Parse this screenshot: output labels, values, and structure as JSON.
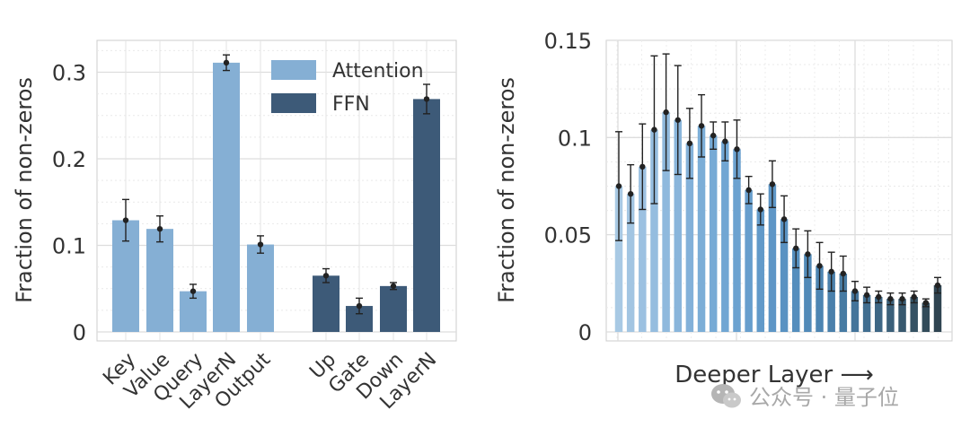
{
  "chart_data": [
    {
      "type": "bar",
      "ylabel": "Fraction of non-zeros",
      "ylim": [
        0,
        0.34
      ],
      "yticks": [
        0,
        0.1,
        0.2,
        0.3
      ],
      "ytick_labels": [
        "0",
        "0.1",
        "0.2",
        "0.3"
      ],
      "grid": true,
      "legend": "top-right",
      "series": [
        {
          "name": "Attention",
          "color": "#85afd4",
          "categories": [
            "Key",
            "Value",
            "Query",
            "LayerN",
            "Output"
          ],
          "values": [
            0.129,
            0.119,
            0.047,
            0.311,
            0.101
          ],
          "errors": [
            0.024,
            0.015,
            0.008,
            0.009,
            0.01
          ]
        },
        {
          "name": "FFN",
          "color": "#3d5a78",
          "categories": [
            "Up",
            "Gate",
            "Down",
            "LayerN"
          ],
          "values": [
            0.065,
            0.03,
            0.053,
            0.269
          ],
          "errors": [
            0.008,
            0.009,
            0.004,
            0.017
          ]
        }
      ]
    },
    {
      "type": "bar",
      "xlabel": "Deeper Layer ⟶",
      "ylabel": "Fraction of non-zeros",
      "ylim": [
        0,
        0.15
      ],
      "yticks": [
        0,
        0.05,
        0.1,
        0.15
      ],
      "ytick_labels": [
        "0",
        "0.05",
        "0.1",
        "0.15"
      ],
      "grid": true,
      "values": [
        0.075,
        0.071,
        0.085,
        0.104,
        0.113,
        0.109,
        0.097,
        0.106,
        0.101,
        0.098,
        0.094,
        0.073,
        0.063,
        0.076,
        0.058,
        0.043,
        0.04,
        0.034,
        0.031,
        0.03,
        0.021,
        0.019,
        0.018,
        0.017,
        0.017,
        0.018,
        0.015,
        0.024
      ],
      "errors": [
        0.028,
        0.015,
        0.022,
        0.038,
        0.03,
        0.028,
        0.018,
        0.016,
        0.007,
        0.01,
        0.015,
        0.007,
        0.008,
        0.012,
        0.012,
        0.01,
        0.012,
        0.012,
        0.01,
        0.009,
        0.005,
        0.004,
        0.003,
        0.003,
        0.003,
        0.003,
        0.002,
        0.004
      ],
      "colors": [
        "#a8c9e4",
        "#a2c5e2",
        "#9cc1e1",
        "#95bddf",
        "#8fb9dd",
        "#89b5db",
        "#83b1d9",
        "#7caed7",
        "#76aad5",
        "#71a6d3",
        "#6ca2d0",
        "#679ecd",
        "#629ac9",
        "#5e96c6",
        "#5992c2",
        "#558ebd",
        "#518ab8",
        "#4d85b2",
        "#4a80ab",
        "#477ba3",
        "#44749a",
        "#416e90",
        "#3e6785",
        "#3b607a",
        "#38596f",
        "#355264",
        "#324b5a",
        "#2f4451"
      ]
    }
  ],
  "watermark": {
    "text": "公众号 · 量子位"
  }
}
